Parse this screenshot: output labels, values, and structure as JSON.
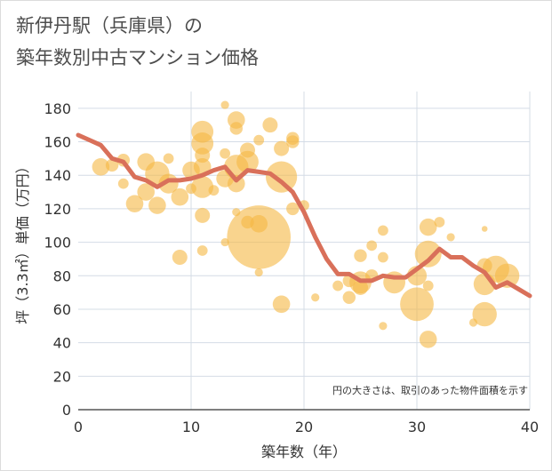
{
  "chart_data": {
    "type": "scatter",
    "title_line1": "新伊丹駅（兵庫県）の",
    "title_line2": "築年数別中古マンション価格",
    "xlabel": "築年数（年）",
    "ylabel": "坪（3.3㎡）単価（万円）",
    "note": "円の大きさは、取引のあった物件面積を示す",
    "xlim": [
      0,
      40
    ],
    "ylim": [
      0,
      190
    ],
    "xticks": [
      "0",
      "10",
      "20",
      "30",
      "40"
    ],
    "yticks": [
      "0",
      "20",
      "40",
      "60",
      "80",
      "100",
      "120",
      "140",
      "160",
      "180"
    ],
    "colors": {
      "bubble": "#f5b742",
      "line": "#d9705a",
      "grid": "#d4dce6",
      "plot_background": "#ffffff"
    },
    "bubbles": [
      {
        "x": 2,
        "y": 145,
        "size": 6
      },
      {
        "x": 3,
        "y": 146,
        "size": 4
      },
      {
        "x": 4,
        "y": 149,
        "size": 4
      },
      {
        "x": 4,
        "y": 135,
        "size": 3
      },
      {
        "x": 5,
        "y": 123,
        "size": 6
      },
      {
        "x": 6,
        "y": 148,
        "size": 6
      },
      {
        "x": 6,
        "y": 130,
        "size": 6
      },
      {
        "x": 7,
        "y": 122,
        "size": 6
      },
      {
        "x": 7,
        "y": 141,
        "size": 9
      },
      {
        "x": 8,
        "y": 135,
        "size": 7
      },
      {
        "x": 8,
        "y": 150,
        "size": 3
      },
      {
        "x": 9,
        "y": 127,
        "size": 6
      },
      {
        "x": 9,
        "y": 91,
        "size": 5
      },
      {
        "x": 10,
        "y": 143,
        "size": 6
      },
      {
        "x": 10,
        "y": 132,
        "size": 3
      },
      {
        "x": 11,
        "y": 166,
        "size": 8
      },
      {
        "x": 11,
        "y": 159,
        "size": 8
      },
      {
        "x": 11,
        "y": 152,
        "size": 5
      },
      {
        "x": 11,
        "y": 145,
        "size": 6
      },
      {
        "x": 11,
        "y": 133,
        "size": 8
      },
      {
        "x": 11,
        "y": 116,
        "size": 5
      },
      {
        "x": 11,
        "y": 95,
        "size": 3
      },
      {
        "x": 12,
        "y": 131,
        "size": 3
      },
      {
        "x": 13,
        "y": 182,
        "size": 2
      },
      {
        "x": 13,
        "y": 153,
        "size": 3
      },
      {
        "x": 13,
        "y": 138,
        "size": 6
      },
      {
        "x": 13,
        "y": 100,
        "size": 2
      },
      {
        "x": 14,
        "y": 173,
        "size": 6
      },
      {
        "x": 14,
        "y": 168,
        "size": 4
      },
      {
        "x": 14,
        "y": 145,
        "size": 9
      },
      {
        "x": 14,
        "y": 135,
        "size": 6
      },
      {
        "x": 14,
        "y": 118,
        "size": 2
      },
      {
        "x": 15,
        "y": 155,
        "size": 5
      },
      {
        "x": 15,
        "y": 148,
        "size": 8
      },
      {
        "x": 15,
        "y": 112,
        "size": 4
      },
      {
        "x": 16,
        "y": 161,
        "size": 3
      },
      {
        "x": 16,
        "y": 103,
        "size": 26
      },
      {
        "x": 16,
        "y": 111,
        "size": 6
      },
      {
        "x": 16,
        "y": 82,
        "size": 2
      },
      {
        "x": 17,
        "y": 170,
        "size": 5
      },
      {
        "x": 18,
        "y": 156,
        "size": 5
      },
      {
        "x": 18,
        "y": 139,
        "size": 12
      },
      {
        "x": 18,
        "y": 63,
        "size": 6
      },
      {
        "x": 19,
        "y": 162,
        "size": 4
      },
      {
        "x": 19,
        "y": 160,
        "size": 4
      },
      {
        "x": 19,
        "y": 120,
        "size": 4
      },
      {
        "x": 20,
        "y": 122,
        "size": 3
      },
      {
        "x": 21,
        "y": 67,
        "size": 2
      },
      {
        "x": 23,
        "y": 74,
        "size": 3
      },
      {
        "x": 24,
        "y": 77,
        "size": 4
      },
      {
        "x": 24,
        "y": 67,
        "size": 4
      },
      {
        "x": 25,
        "y": 92,
        "size": 4
      },
      {
        "x": 25,
        "y": 76,
        "size": 8
      },
      {
        "x": 25,
        "y": 73,
        "size": 5
      },
      {
        "x": 26,
        "y": 98,
        "size": 3
      },
      {
        "x": 26,
        "y": 80,
        "size": 4
      },
      {
        "x": 27,
        "y": 107,
        "size": 3
      },
      {
        "x": 27,
        "y": 91,
        "size": 3
      },
      {
        "x": 27,
        "y": 50,
        "size": 2
      },
      {
        "x": 28,
        "y": 76,
        "size": 8
      },
      {
        "x": 30,
        "y": 80,
        "size": 7
      },
      {
        "x": 30,
        "y": 63,
        "size": 13
      },
      {
        "x": 31,
        "y": 109,
        "size": 6
      },
      {
        "x": 31,
        "y": 93,
        "size": 10
      },
      {
        "x": 31,
        "y": 74,
        "size": 3
      },
      {
        "x": 31,
        "y": 42,
        "size": 6
      },
      {
        "x": 32,
        "y": 112,
        "size": 3
      },
      {
        "x": 33,
        "y": 103,
        "size": 2
      },
      {
        "x": 35,
        "y": 52,
        "size": 2
      },
      {
        "x": 36,
        "y": 108,
        "size": 1
      },
      {
        "x": 36,
        "y": 86,
        "size": 5
      },
      {
        "x": 36,
        "y": 75,
        "size": 8
      },
      {
        "x": 36,
        "y": 57,
        "size": 9
      },
      {
        "x": 37,
        "y": 84,
        "size": 10
      },
      {
        "x": 38,
        "y": 80,
        "size": 9
      }
    ],
    "series": [
      {
        "x": [
          0,
          1,
          2,
          3,
          4,
          5,
          6,
          7,
          8,
          9,
          10,
          11,
          12,
          13,
          14,
          15,
          16,
          17,
          18,
          19,
          20,
          21,
          22,
          23,
          24,
          25,
          26,
          27,
          28,
          29,
          30,
          31,
          32,
          33,
          34,
          35,
          36,
          37,
          38,
          39,
          40
        ],
        "values": [
          164,
          161,
          158,
          150,
          148,
          139,
          137,
          133,
          137,
          137,
          138,
          140,
          143,
          145,
          137,
          143,
          142,
          141,
          136,
          130,
          118,
          103,
          90,
          81,
          81,
          77,
          77,
          80,
          79,
          79,
          84,
          89,
          96,
          91,
          91,
          86,
          82,
          73,
          76,
          72,
          68
        ]
      }
    ]
  }
}
